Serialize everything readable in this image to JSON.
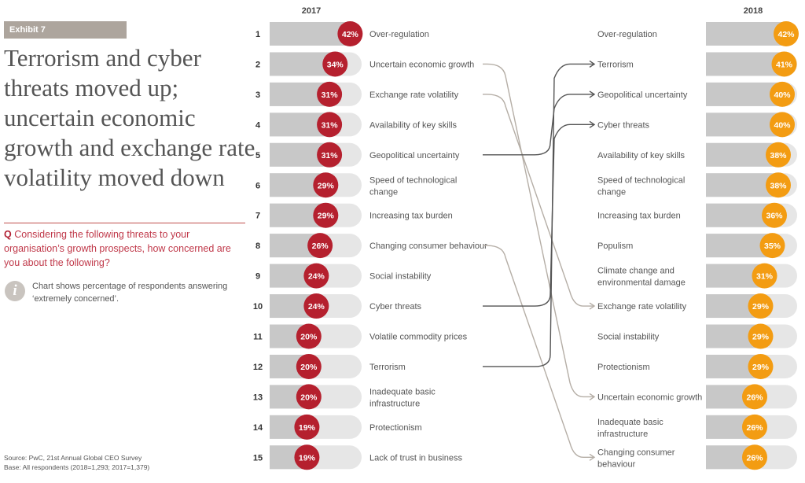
{
  "exhibit_label": "Exhibit 7",
  "title": "Terrorism and cyber threats moved up; uncertain economic growth and exchange rate volatility moved down",
  "question_prefix": "Q",
  "question": "Considering the following threats to your organisation’s growth prospects, how concerned are you about the following?",
  "info_icon": "info-icon",
  "note": "Chart shows percentage of respondents answering ‘extremely concerned’.",
  "source": "Source: PwC, 21st Annual Global CEO Survey",
  "base": "Base: All respondents (2018=1,293; 2017=1,379)",
  "colors": {
    "y2017": "#b5202e",
    "y2018": "#f39c12",
    "bar": "#c8c8c8",
    "track": "#e6e6e6",
    "up_line": "#555555",
    "down_line": "#b5aea6"
  },
  "chart_data": {
    "type": "bar",
    "panels": [
      {
        "year": "2017",
        "ranks": [
          1,
          2,
          3,
          4,
          5,
          6,
          7,
          8,
          9,
          10,
          11,
          12,
          13,
          14,
          15
        ],
        "categories": [
          "Over-regulation",
          "Uncertain economic growth",
          "Exchange rate volatility",
          "Availability of key skills",
          "Geopolitical uncertainty",
          "Speed of technological change",
          "Increasing tax burden",
          "Changing consumer behaviour",
          "Social instability",
          "Cyber threats",
          "Volatile commodity prices",
          "Terrorism",
          "Inadequate basic infrastructure",
          "Protectionism",
          "Lack of trust in business"
        ],
        "values": [
          42,
          34,
          31,
          31,
          31,
          29,
          29,
          26,
          24,
          24,
          20,
          20,
          20,
          19,
          19
        ]
      },
      {
        "year": "2018",
        "categories": [
          "Over-regulation",
          "Terrorism",
          "Geopolitical uncertainty",
          "Cyber threats",
          "Availability of key skills",
          "Speed of technological change",
          "Increasing tax burden",
          "Populism",
          "Climate change and environmental damage",
          "Exchange rate volatility",
          "Social instability",
          "Protectionism",
          "Uncertain economic growth",
          "Inadequate basic infrastructure",
          "Changing consumer behaviour"
        ],
        "values": [
          42,
          41,
          40,
          40,
          38,
          38,
          36,
          35,
          31,
          29,
          29,
          29,
          26,
          26,
          26
        ]
      }
    ],
    "movements": [
      {
        "threat": "Uncertain economic growth",
        "from_rank": 2,
        "to_rank": 13,
        "direction": "down"
      },
      {
        "threat": "Exchange rate volatility",
        "from_rank": 3,
        "to_rank": 10,
        "direction": "down"
      },
      {
        "threat": "Geopolitical uncertainty",
        "from_rank": 5,
        "to_rank": 3,
        "direction": "up"
      },
      {
        "threat": "Changing consumer behaviour",
        "from_rank": 8,
        "to_rank": 15,
        "direction": "down"
      },
      {
        "threat": "Cyber threats",
        "from_rank": 10,
        "to_rank": 4,
        "direction": "up"
      },
      {
        "threat": "Terrorism",
        "from_rank": 12,
        "to_rank": 2,
        "direction": "up"
      }
    ],
    "unit": "%"
  }
}
